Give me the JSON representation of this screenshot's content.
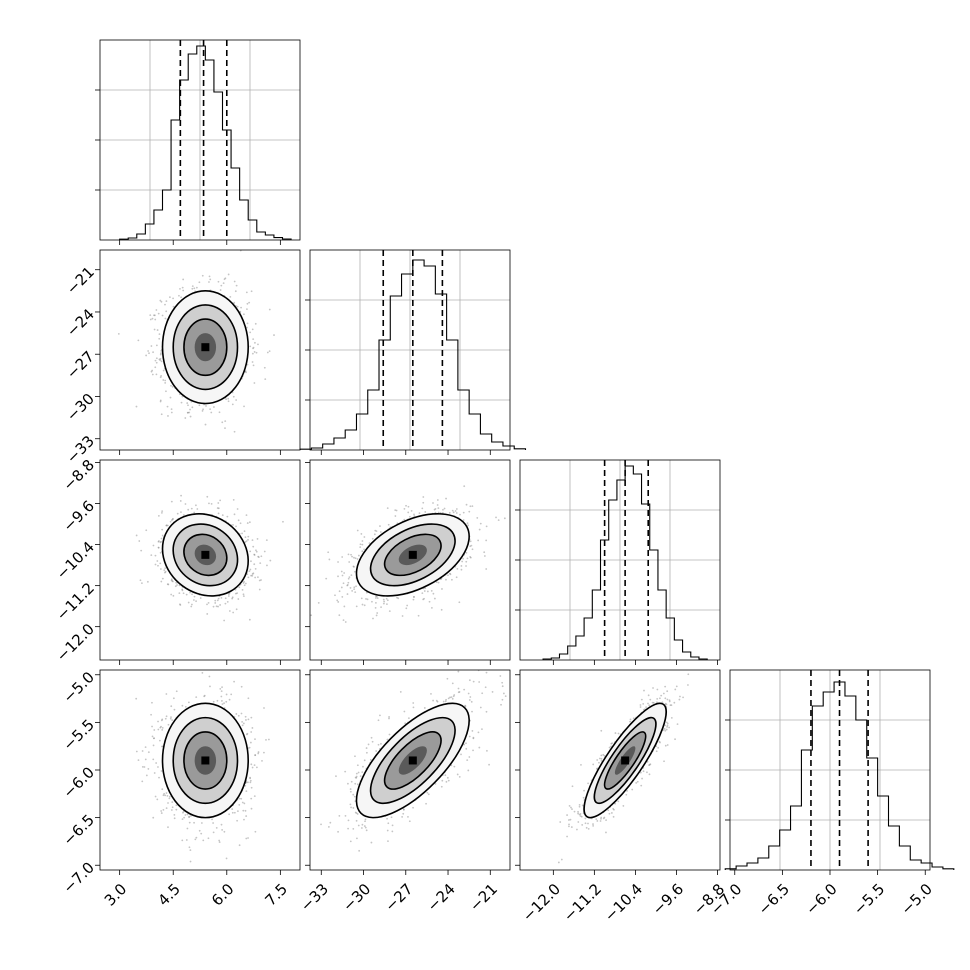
{
  "chart_data": {
    "type": "corner",
    "title": "",
    "grid": true,
    "scatter_color": "#7f7f7f",
    "contour_color": "#000000",
    "hist_color": "#000000",
    "grid_color": "#b0b0b0",
    "parameters": [
      {
        "index": 0,
        "range": [
          2.45,
          8.05
        ],
        "ticks": [
          3.0,
          4.5,
          6.0,
          7.5
        ],
        "tick_labels": [
          "3.0",
          "4.5",
          "6.0",
          "7.5"
        ],
        "mean": 5.4,
        "sd": 0.6,
        "quantiles": [
          4.7,
          5.35,
          6.0
        ],
        "hist_values": [
          0.004,
          0.01,
          0.03,
          0.08,
          0.15,
          0.25,
          0.6,
          0.8,
          0.93,
          0.97,
          0.9,
          0.74,
          0.55,
          0.36,
          0.2,
          0.1,
          0.04,
          0.025,
          0.012,
          0.005
        ]
      },
      {
        "index": 1,
        "range": [
          -33.8,
          -19.6
        ],
        "ticks": [
          -33,
          -30,
          -27,
          -24,
          -21
        ],
        "tick_labels": [
          "−33",
          "−30",
          "−27",
          "−24",
          "−21"
        ],
        "mean": -26.5,
        "sd": 2.0,
        "quantiles": [
          -28.6,
          -26.5,
          -24.4
        ],
        "hist_values": [
          0.004,
          0.01,
          0.03,
          0.06,
          0.1,
          0.18,
          0.3,
          0.55,
          0.77,
          0.88,
          0.95,
          0.92,
          0.78,
          0.55,
          0.3,
          0.18,
          0.08,
          0.04,
          0.02,
          0.006
        ]
      },
      {
        "index": 2,
        "range": [
          -12.65,
          -8.75
        ],
        "ticks": [
          -12.0,
          -11.2,
          -10.4,
          -9.6,
          -8.8
        ],
        "tick_labels": [
          "−12.0",
          "−11.2",
          "−10.4",
          "−9.6",
          "−8.8"
        ],
        "mean": -10.6,
        "sd": 0.4,
        "quantiles": [
          -11.0,
          -10.6,
          -10.15
        ],
        "hist_values": [
          0.005,
          0.01,
          0.03,
          0.07,
          0.12,
          0.21,
          0.35,
          0.6,
          0.8,
          0.9,
          0.97,
          0.93,
          0.78,
          0.55,
          0.35,
          0.21,
          0.1,
          0.04,
          0.015,
          0.005
        ]
      },
      {
        "index": 3,
        "range": [
          -7.05,
          -4.95
        ],
        "ticks": [
          -7.0,
          -6.5,
          -6.0,
          -5.5,
          -5.0
        ],
        "tick_labels": [
          "−7.0",
          "−6.5",
          "−6.0",
          "−5.5",
          "−5.0"
        ],
        "mean": -5.9,
        "sd": 0.3,
        "quantiles": [
          -6.2,
          -5.9,
          -5.6
        ],
        "hist_values": [
          0.006,
          0.02,
          0.035,
          0.06,
          0.12,
          0.2,
          0.32,
          0.6,
          0.82,
          0.89,
          0.94,
          0.87,
          0.75,
          0.56,
          0.37,
          0.22,
          0.12,
          0.05,
          0.035,
          0.015,
          0.006
        ]
      }
    ],
    "correlations": [
      {
        "pair": [
          1,
          0
        ],
        "rho": 0.0
      },
      {
        "pair": [
          2,
          0
        ],
        "rho": -0.15
      },
      {
        "pair": [
          2,
          1
        ],
        "rho": 0.45
      },
      {
        "pair": [
          3,
          0
        ],
        "rho": 0.0
      },
      {
        "pair": [
          3,
          1
        ],
        "rho": 0.7
      },
      {
        "pair": [
          3,
          2
        ],
        "rho": 0.85
      }
    ],
    "contour_levels_sigma": [
      0.5,
      1.0,
      1.5,
      2.0
    ]
  }
}
